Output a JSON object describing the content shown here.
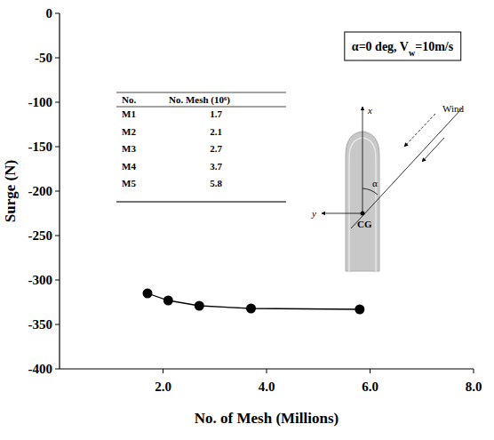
{
  "chart_data": {
    "type": "line",
    "x_label": "No. of Mesh (Millions)",
    "y_label": "Surge (N)",
    "x": [
      1.7,
      2.1,
      2.7,
      3.7,
      5.8
    ],
    "values": [
      -315,
      -323,
      -329,
      -332,
      -333
    ],
    "color": "#000000",
    "marker": "circle",
    "line_style": "solid",
    "grid": false,
    "xlim": [
      0,
      8
    ],
    "xticks": [
      {
        "value": 2,
        "label": "2.0"
      },
      {
        "value": 4,
        "label": "4.0"
      },
      {
        "value": 6,
        "label": "6.0"
      },
      {
        "value": 8,
        "label": "8.0"
      }
    ],
    "ylim": [
      -400,
      0
    ],
    "yticks": [
      -400,
      -350,
      -300,
      -250,
      -200,
      -150,
      -100,
      -50,
      0
    ],
    "annotation": [
      {
        "text": "α=0 deg, V"
      },
      {
        "text": "w",
        "sub": true
      },
      {
        "text": "=10m/s"
      }
    ],
    "inset_table": {
      "header": [
        "No.",
        "No.  Mesh (10⁶)"
      ],
      "rows": [
        [
          "M1",
          "1.7"
        ],
        [
          "M2",
          "2.1"
        ],
        [
          "M3",
          "2.7"
        ],
        [
          "M4",
          "3.7"
        ],
        [
          "M5",
          "5.8"
        ]
      ]
    },
    "diagram": {
      "x_axis": "x",
      "y_axis": "y",
      "cg": "CG",
      "wind": "Wind",
      "angle": "α"
    }
  }
}
